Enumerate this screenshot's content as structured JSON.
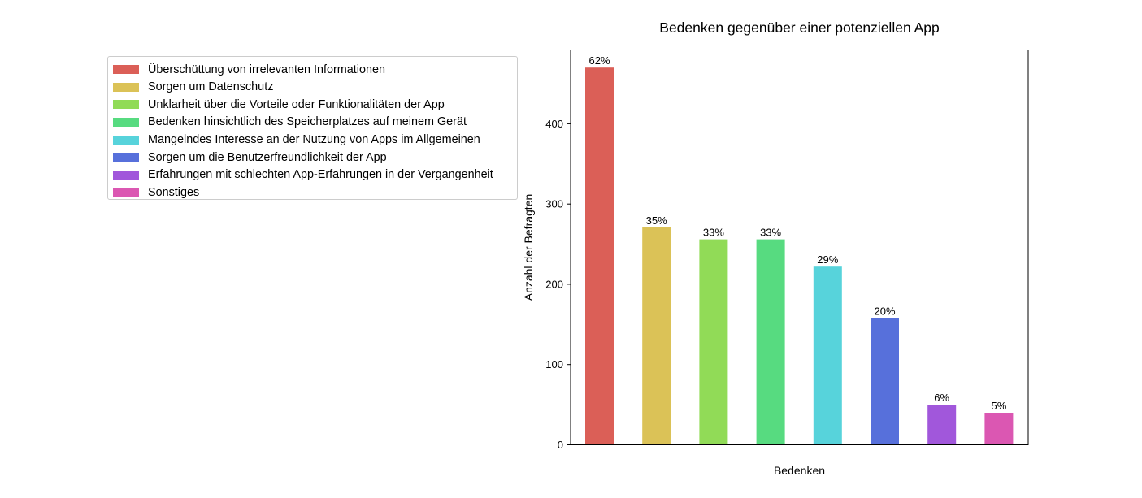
{
  "chart_data": {
    "type": "bar",
    "title": "Bedenken gegenüber einer potenziellen App",
    "xlabel": "Bedenken",
    "ylabel": "Anzahl der Befragten",
    "ylim": [
      0,
      492
    ],
    "yticks": [
      0,
      100,
      200,
      300,
      400
    ],
    "categories": [
      "Überschüttung von irrelevanten Informationen",
      "Sorgen um Datenschutz",
      "Unklarheit über die Vorteile oder Funktionalitäten der App",
      "Bedenken hinsichtlich des Speicherplatzes auf meinem Gerät",
      "Mangelndes Interesse an der Nutzung von Apps im Allgemeinen",
      "Sorgen um die Benutzerfreundlichkeit der App",
      "Erfahrungen mit schlechten App-Erfahrungen in der Vergangenheit",
      "Sonstiges"
    ],
    "values": [
      470,
      271,
      256,
      256,
      222,
      158,
      50,
      40
    ],
    "data_labels": [
      "62%",
      "35%",
      "33%",
      "33%",
      "29%",
      "20%",
      "6%",
      "5%"
    ],
    "colors": [
      "#db5f57",
      "#dbc257",
      "#91db57",
      "#57db80",
      "#57d3db",
      "#5770db",
      "#a157db",
      "#db57b2"
    ],
    "grid": false,
    "legend_position": "outside-upper-left"
  }
}
